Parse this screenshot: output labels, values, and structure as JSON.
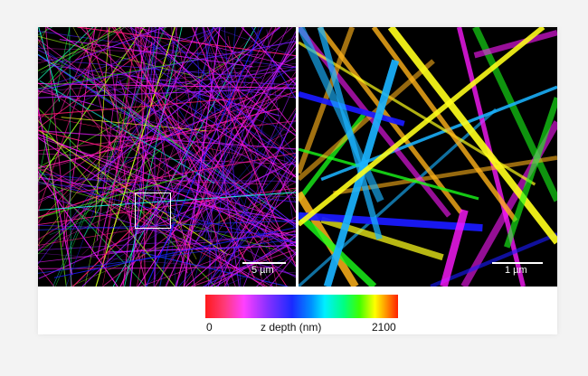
{
  "left_panel": {
    "scale_label": "5 µm"
  },
  "right_panel": {
    "scale_label": "1 µm"
  },
  "colorbar": {
    "min_label": "0",
    "max_label": "2100",
    "title": "z depth (nm)",
    "colors": [
      "#ff1a1a",
      "#ff40ff",
      "#1a2aff",
      "#00f0ff",
      "#40ff00",
      "#ffff00",
      "#ff2000"
    ]
  }
}
